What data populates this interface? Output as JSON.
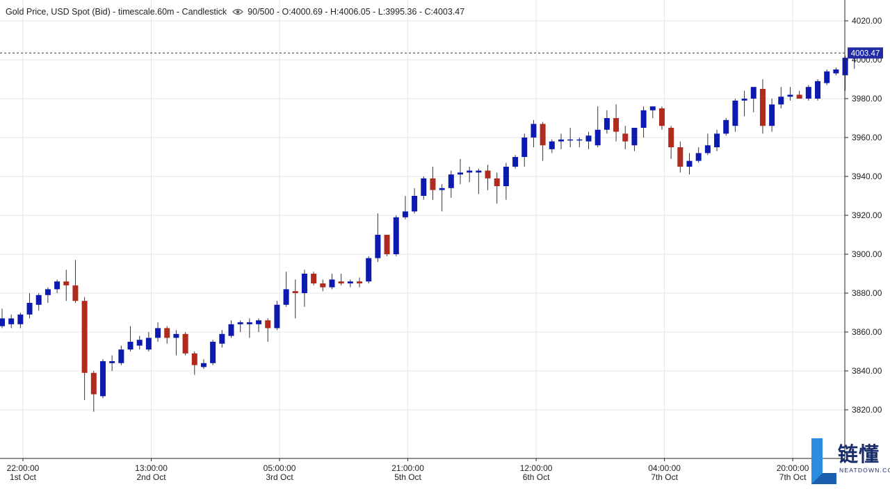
{
  "header": {
    "title": "Gold Price, USD Spot (Bid) - timescale.60m - Candlestick",
    "eye_icon": "eye-icon",
    "stats": "90/500 - O:4000.69 - H:4006.05 - L:3995.36 - C:4003.47"
  },
  "logo": {
    "cn": "链懂",
    "en": "NEATDOWN.COM"
  },
  "colors": {
    "up": "#0d1ab0",
    "down": "#b02a1e",
    "grid": "#e6e6e6",
    "axis": "#222222",
    "price_tag": "#1f2aa3"
  },
  "chart_data": {
    "type": "candlestick",
    "title": "Gold Price, USD Spot (Bid) - timescale.60m - Candlestick",
    "ylim": [
      3808,
      4030
    ],
    "y_ticks": [
      3820,
      3840,
      3860,
      3880,
      3900,
      3920,
      3940,
      3960,
      3980,
      4000,
      4020
    ],
    "y_tick_labels": [
      "3820.00",
      "3840.00",
      "3860.00",
      "3880.00",
      "3900.00",
      "3920.00",
      "3940.00",
      "3960.00",
      "3980.00",
      "4000.00",
      "4020.00"
    ],
    "last_price": 4003.47,
    "last_price_label": "4003.47",
    "x_ticks": [
      {
        "index": 0,
        "time": "22:00:00",
        "date": "1st Oct"
      },
      {
        "index": 14,
        "time": "13:00:00",
        "date": "2nd Oct"
      },
      {
        "index": 28,
        "time": "05:00:00",
        "date": "3rd Oct"
      },
      {
        "index": 42,
        "time": "21:00:00",
        "date": "5th Oct"
      },
      {
        "index": 56,
        "time": "12:00:00",
        "date": "6th Oct"
      },
      {
        "index": 70,
        "time": "04:00:00",
        "date": "7th Oct"
      },
      {
        "index": 84,
        "time": "20:00:00",
        "date": "7th Oct"
      }
    ],
    "candles": [
      {
        "o": 3863,
        "h": 3872,
        "l": 3862,
        "c": 3867
      },
      {
        "o": 3864,
        "h": 3869,
        "l": 3862,
        "c": 3867
      },
      {
        "o": 3864,
        "h": 3870,
        "l": 3862,
        "c": 3869
      },
      {
        "o": 3869,
        "h": 3880,
        "l": 3867,
        "c": 3875
      },
      {
        "o": 3874,
        "h": 3880,
        "l": 3871,
        "c": 3879
      },
      {
        "o": 3879,
        "h": 3883,
        "l": 3875,
        "c": 3882
      },
      {
        "o": 3882,
        "h": 3887,
        "l": 3880,
        "c": 3886
      },
      {
        "o": 3886,
        "h": 3892,
        "l": 3876,
        "c": 3884
      },
      {
        "o": 3884,
        "h": 3897,
        "l": 3875,
        "c": 3876
      },
      {
        "o": 3876,
        "h": 3878,
        "l": 3825,
        "c": 3839
      },
      {
        "o": 3839,
        "h": 3840,
        "l": 3819,
        "c": 3828
      },
      {
        "o": 3827,
        "h": 3846,
        "l": 3826,
        "c": 3845
      },
      {
        "o": 3844,
        "h": 3848,
        "l": 3840,
        "c": 3845
      },
      {
        "o": 3844,
        "h": 3853,
        "l": 3843,
        "c": 3851
      },
      {
        "o": 3851,
        "h": 3863,
        "l": 3850,
        "c": 3855
      },
      {
        "o": 3853,
        "h": 3858,
        "l": 3851,
        "c": 3856
      },
      {
        "o": 3851,
        "h": 3860,
        "l": 3850,
        "c": 3857
      },
      {
        "o": 3857,
        "h": 3865,
        "l": 3855,
        "c": 3862
      },
      {
        "o": 3862,
        "h": 3863,
        "l": 3854,
        "c": 3857
      },
      {
        "o": 3857,
        "h": 3861,
        "l": 3848,
        "c": 3859
      },
      {
        "o": 3859,
        "h": 3860,
        "l": 3848,
        "c": 3849
      },
      {
        "o": 3849,
        "h": 3850,
        "l": 3838,
        "c": 3843
      },
      {
        "o": 3842,
        "h": 3846,
        "l": 3841,
        "c": 3844
      },
      {
        "o": 3844,
        "h": 3856,
        "l": 3843,
        "c": 3855
      },
      {
        "o": 3854,
        "h": 3861,
        "l": 3852,
        "c": 3859
      },
      {
        "o": 3858,
        "h": 3866,
        "l": 3857,
        "c": 3864
      },
      {
        "o": 3864,
        "h": 3866,
        "l": 3860,
        "c": 3865
      },
      {
        "o": 3864,
        "h": 3867,
        "l": 3857,
        "c": 3865
      },
      {
        "o": 3864,
        "h": 3867,
        "l": 3860,
        "c": 3866
      },
      {
        "o": 3866,
        "h": 3867,
        "l": 3855,
        "c": 3862
      },
      {
        "o": 3862,
        "h": 3876,
        "l": 3861,
        "c": 3874
      },
      {
        "o": 3874,
        "h": 3891,
        "l": 3873,
        "c": 3882
      },
      {
        "o": 3881,
        "h": 3887,
        "l": 3867,
        "c": 3880
      },
      {
        "o": 3880,
        "h": 3892,
        "l": 3873,
        "c": 3890
      },
      {
        "o": 3890,
        "h": 3891,
        "l": 3884,
        "c": 3885
      },
      {
        "o": 3885,
        "h": 3887,
        "l": 3881,
        "c": 3883
      },
      {
        "o": 3883,
        "h": 3890,
        "l": 3882,
        "c": 3887
      },
      {
        "o": 3886,
        "h": 3890,
        "l": 3884,
        "c": 3885
      },
      {
        "o": 3885,
        "h": 3887,
        "l": 3883,
        "c": 3886
      },
      {
        "o": 3886,
        "h": 3888,
        "l": 3883,
        "c": 3885
      },
      {
        "o": 3886,
        "h": 3899,
        "l": 3885,
        "c": 3898
      },
      {
        "o": 3898,
        "h": 3921,
        "l": 3896,
        "c": 3910
      },
      {
        "o": 3910,
        "h": 3910,
        "l": 3899,
        "c": 3900
      },
      {
        "o": 3900,
        "h": 3920,
        "l": 3899,
        "c": 3919
      },
      {
        "o": 3919,
        "h": 3930,
        "l": 3918,
        "c": 3922
      },
      {
        "o": 3922,
        "h": 3934,
        "l": 3921,
        "c": 3930
      },
      {
        "o": 3930,
        "h": 3940,
        "l": 3928,
        "c": 3939
      },
      {
        "o": 3939,
        "h": 3945,
        "l": 3928,
        "c": 3933
      },
      {
        "o": 3933,
        "h": 3936,
        "l": 3922,
        "c": 3934
      },
      {
        "o": 3934,
        "h": 3943,
        "l": 3929,
        "c": 3941
      },
      {
        "o": 3941,
        "h": 3949,
        "l": 3936,
        "c": 3942
      },
      {
        "o": 3942,
        "h": 3945,
        "l": 3937,
        "c": 3943
      },
      {
        "o": 3942,
        "h": 3944,
        "l": 3931,
        "c": 3943
      },
      {
        "o": 3943,
        "h": 3946,
        "l": 3933,
        "c": 3939
      },
      {
        "o": 3939,
        "h": 3942,
        "l": 3926,
        "c": 3935
      },
      {
        "o": 3935,
        "h": 3947,
        "l": 3928,
        "c": 3945
      },
      {
        "o": 3945,
        "h": 3951,
        "l": 3944,
        "c": 3950
      },
      {
        "o": 3950,
        "h": 3962,
        "l": 3945,
        "c": 3960
      },
      {
        "o": 3960,
        "h": 3969,
        "l": 3955,
        "c": 3967
      },
      {
        "o": 3967,
        "h": 3968,
        "l": 3948,
        "c": 3956
      },
      {
        "o": 3954,
        "h": 3959,
        "l": 3952,
        "c": 3958
      },
      {
        "o": 3958,
        "h": 3962,
        "l": 3954,
        "c": 3959
      },
      {
        "o": 3959,
        "h": 3965,
        "l": 3955,
        "c": 3959
      },
      {
        "o": 3959,
        "h": 3960,
        "l": 3955,
        "c": 3959
      },
      {
        "o": 3958,
        "h": 3963,
        "l": 3954,
        "c": 3961
      },
      {
        "o": 3956,
        "h": 3976,
        "l": 3955,
        "c": 3964
      },
      {
        "o": 3964,
        "h": 3974,
        "l": 3962,
        "c": 3970
      },
      {
        "o": 3970,
        "h": 3977,
        "l": 3958,
        "c": 3963
      },
      {
        "o": 3962,
        "h": 3966,
        "l": 3954,
        "c": 3958
      },
      {
        "o": 3956,
        "h": 3965,
        "l": 3953,
        "c": 3965
      },
      {
        "o": 3965,
        "h": 3976,
        "l": 3960,
        "c": 3974
      },
      {
        "o": 3974,
        "h": 3976,
        "l": 3970,
        "c": 3976
      },
      {
        "o": 3975,
        "h": 3976,
        "l": 3964,
        "c": 3966
      },
      {
        "o": 3965,
        "h": 3966,
        "l": 3949,
        "c": 3955
      },
      {
        "o": 3955,
        "h": 3958,
        "l": 3942,
        "c": 3945
      },
      {
        "o": 3945,
        "h": 3952,
        "l": 3941,
        "c": 3948
      },
      {
        "o": 3948,
        "h": 3955,
        "l": 3947,
        "c": 3952
      },
      {
        "o": 3952,
        "h": 3962,
        "l": 3951,
        "c": 3956
      },
      {
        "o": 3955,
        "h": 3964,
        "l": 3953,
        "c": 3962
      },
      {
        "o": 3962,
        "h": 3970,
        "l": 3961,
        "c": 3969
      },
      {
        "o": 3966,
        "h": 3980,
        "l": 3963,
        "c": 3979
      },
      {
        "o": 3979,
        "h": 3984,
        "l": 3971,
        "c": 3980
      },
      {
        "o": 3980,
        "h": 3986,
        "l": 3973,
        "c": 3986
      },
      {
        "o": 3985,
        "h": 3990,
        "l": 3962,
        "c": 3966
      },
      {
        "o": 3966,
        "h": 3980,
        "l": 3963,
        "c": 3977
      },
      {
        "o": 3977,
        "h": 3986,
        "l": 3975,
        "c": 3981
      },
      {
        "o": 3981,
        "h": 3986,
        "l": 3979,
        "c": 3982
      },
      {
        "o": 3982,
        "h": 3984,
        "l": 3980,
        "c": 3980
      },
      {
        "o": 3980,
        "h": 3987,
        "l": 3979,
        "c": 3986
      },
      {
        "o": 3980,
        "h": 3990,
        "l": 3979,
        "c": 3989
      },
      {
        "o": 3988,
        "h": 3995,
        "l": 3987,
        "c": 3994
      },
      {
        "o": 3993,
        "h": 3996,
        "l": 3992,
        "c": 3995
      },
      {
        "o": 3992,
        "h": 4002,
        "l": 3984,
        "c": 4001
      },
      {
        "o": 4000.69,
        "h": 4006.05,
        "l": 3995.36,
        "c": 4003.47
      }
    ]
  }
}
